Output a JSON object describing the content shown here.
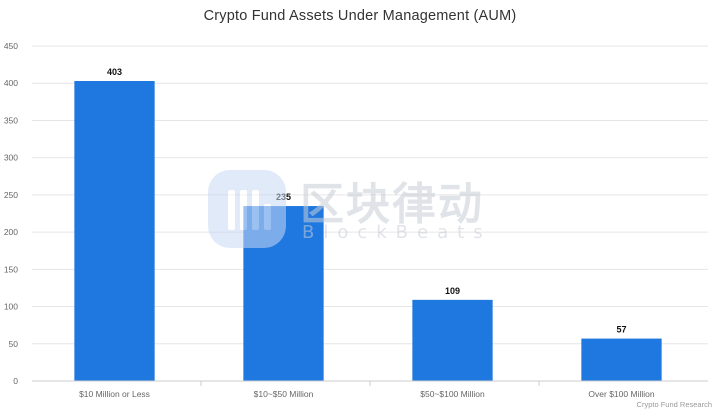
{
  "chart_data": {
    "type": "bar",
    "title": "Crypto Fund Assets Under Management (AUM)",
    "categories": [
      "$10 Million or Less",
      "$10~$50 Million",
      "$50~$100 Million",
      "Over $100 Million"
    ],
    "values": [
      403,
      235,
      109,
      57
    ],
    "ylim": [
      0,
      450
    ],
    "yticks": [
      0,
      50,
      100,
      150,
      200,
      250,
      300,
      350,
      400,
      450
    ],
    "grid": true,
    "bar_color": "#1f77e0",
    "credit": "Crypto Fund Research"
  },
  "watermark": {
    "cn_text": "区块律动",
    "en_text": "BlockBeats",
    "color": "#c7cdd6"
  }
}
